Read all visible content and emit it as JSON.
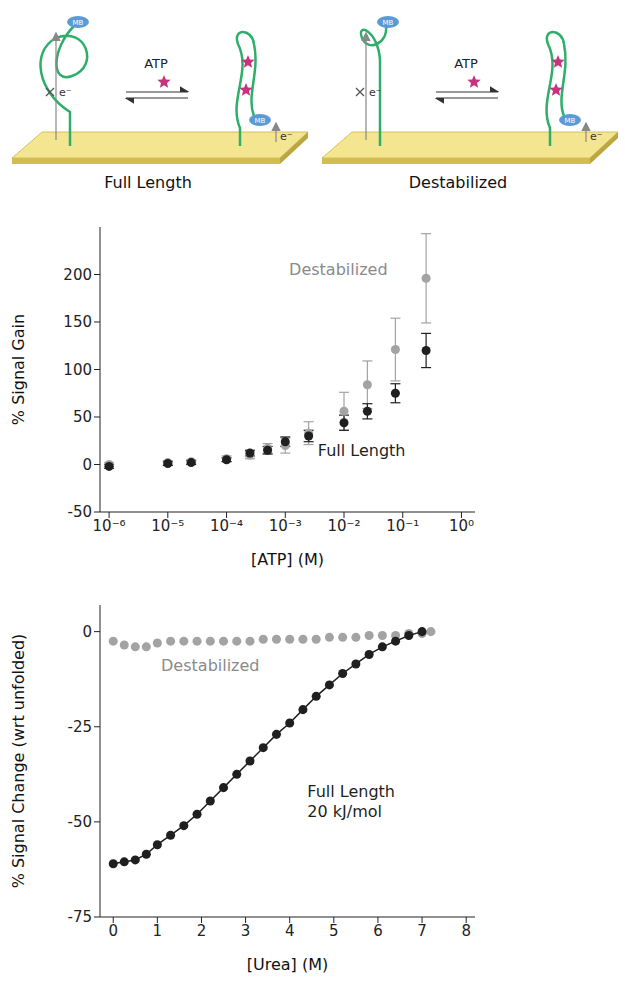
{
  "diagram": {
    "panels": [
      {
        "label": "Full Length",
        "ligand": "ATP",
        "redox_tag": "MB",
        "electron": "e⁻"
      },
      {
        "label": "Destabilized",
        "ligand": "ATP",
        "redox_tag": "MB",
        "electron": "e⁻"
      }
    ]
  },
  "chart_data": [
    {
      "type": "scatter",
      "x_label": "[ATP] (M)",
      "y_label": "% Signal Gain",
      "log": "x",
      "xlim": [
        7e-07,
        1.7
      ],
      "xticks": [
        {
          "value": 1e-06,
          "label": "10⁻⁶"
        },
        {
          "value": 1e-05,
          "label": "10⁻⁵"
        },
        {
          "value": 0.0001,
          "label": "10⁻⁴"
        },
        {
          "value": 0.001,
          "label": "10⁻³"
        },
        {
          "value": 0.01,
          "label": "10⁻²"
        },
        {
          "value": 0.1,
          "label": "10⁻¹"
        },
        {
          "value": 1,
          "label": "10⁰"
        }
      ],
      "ylim": [
        -50,
        250
      ],
      "yticks": [
        -50,
        0,
        50,
        100,
        150,
        200
      ],
      "series": [
        {
          "name": "Destabilized",
          "color": "#a3a3a3",
          "marker": "circle",
          "x": [
            1e-06,
            1e-05,
            2.5e-05,
            0.0001,
            0.00025,
            0.0005,
            0.001,
            0.0025,
            0.01,
            0.025,
            0.075,
            0.25
          ],
          "values": [
            0,
            2,
            3,
            6,
            10,
            17,
            20,
            33,
            56,
            84,
            121,
            196
          ],
          "errors": [
            2,
            2,
            2,
            3,
            4,
            5,
            8,
            12,
            20,
            25,
            33,
            47
          ]
        },
        {
          "name": "Full Length",
          "color": "#1f1f1f",
          "marker": "circle",
          "x": [
            1e-06,
            1e-05,
            2.5e-05,
            0.0001,
            0.00025,
            0.0005,
            0.001,
            0.0025,
            0.01,
            0.025,
            0.075,
            0.25
          ],
          "values": [
            -2,
            1,
            2,
            5,
            12,
            15,
            24,
            30,
            44,
            56,
            75,
            120
          ],
          "errors": [
            2,
            2,
            2,
            2,
            3,
            4,
            5,
            6,
            8,
            8,
            10,
            18
          ]
        }
      ]
    },
    {
      "type": "scatter",
      "x_label": "[Urea] (M)",
      "y_label": "% Signal Change (wrt unfolded)",
      "xlim": [
        -0.3,
        8.2
      ],
      "xticks": [
        0,
        1,
        2,
        3,
        4,
        5,
        6,
        7,
        8
      ],
      "ylim": [
        -75,
        7
      ],
      "yticks": [
        -75,
        -50,
        -25,
        0
      ],
      "series": [
        {
          "name": "Destabilized",
          "color": "#a3a3a3",
          "marker": "circle",
          "line_style": "none",
          "x": [
            0,
            0.25,
            0.5,
            0.75,
            1,
            1.3,
            1.6,
            1.9,
            2.2,
            2.5,
            2.8,
            3.1,
            3.4,
            3.7,
            4,
            4.3,
            4.6,
            4.9,
            5.2,
            5.5,
            5.8,
            6.1,
            6.4,
            6.7,
            7.0,
            7.2
          ],
          "values": [
            -2.5,
            -3.5,
            -4,
            -4,
            -3,
            -2.5,
            -2.5,
            -2.5,
            -2.5,
            -2.5,
            -2.5,
            -2.5,
            -2,
            -2,
            -2,
            -2,
            -2,
            -1.5,
            -1.5,
            -1.5,
            -1,
            -1,
            -1,
            -0.5,
            -0.5,
            0
          ]
        },
        {
          "name": "Full Length",
          "annotation": "20 kJ/mol",
          "color": "#1f1f1f",
          "marker": "circle",
          "line_style": "solid",
          "x": [
            0,
            0.25,
            0.5,
            0.75,
            1,
            1.3,
            1.6,
            1.9,
            2.2,
            2.5,
            2.8,
            3.1,
            3.4,
            3.7,
            4,
            4.3,
            4.6,
            4.9,
            5.2,
            5.5,
            5.8,
            6.1,
            6.4,
            6.7,
            7.0
          ],
          "values": [
            -61,
            -60.5,
            -60,
            -58.5,
            -56,
            -53.5,
            -51,
            -48,
            -44.5,
            -41,
            -37.5,
            -34,
            -30.5,
            -27,
            -24,
            -20.5,
            -17,
            -14,
            -11,
            -8.5,
            -6,
            -4,
            -2.5,
            -1,
            0
          ]
        }
      ]
    }
  ]
}
